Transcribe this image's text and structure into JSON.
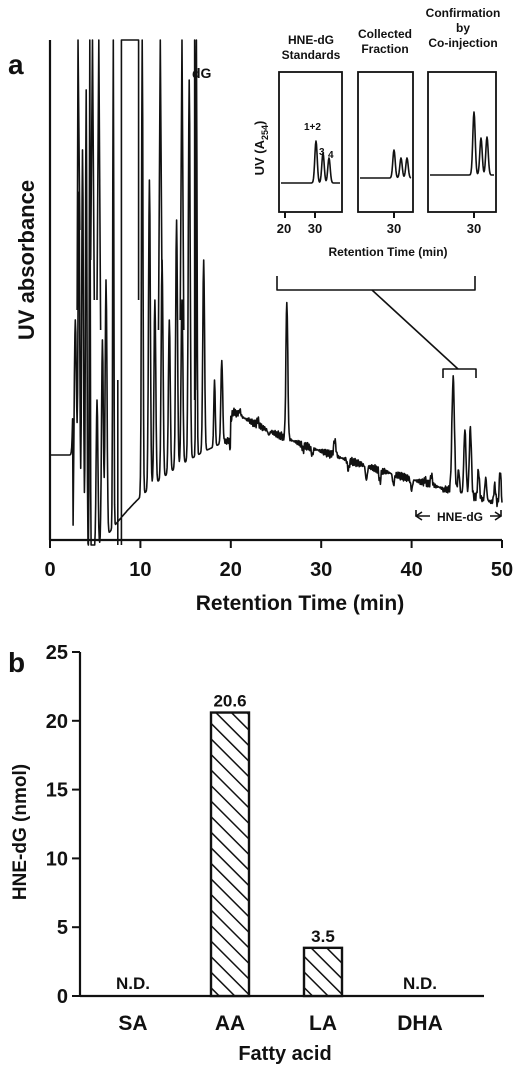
{
  "panel_a": {
    "letter": "a",
    "ylabel": "UV absorbance",
    "xlabel": "Retention Time (min)",
    "x_ticks": [
      "0",
      "10",
      "20",
      "30",
      "40",
      "50"
    ],
    "peak_label": "dG",
    "bracket_label": "HNE-dG",
    "insets": {
      "standards_title_1": "HNE-dG",
      "standards_title_2": "Standards",
      "collected_title_1": "Collected",
      "collected_title_2": "Fraction",
      "confirm_title_1": "Confirmation",
      "confirm_title_2": "by",
      "confirm_title_3": "Co-injection",
      "ylabel_1": "UV (A",
      "ylabel_sub": "254",
      "ylabel_2": ")",
      "peak_label_12": "1+2",
      "peak_label_3": "3",
      "peak_label_4": "4",
      "x_ticks": [
        "20",
        "30",
        "30",
        "30"
      ],
      "xlabel": "Retention Time (min)"
    }
  },
  "panel_b": {
    "letter": "b",
    "ylabel": "HNE-dG (nmol)",
    "xlabel": "Fatty acid",
    "nd_label": "N.D."
  },
  "chart_data": [
    {
      "type": "line",
      "xlabel": "Retention Time (min)",
      "ylabel": "UV absorbance",
      "xlim": [
        0,
        50
      ],
      "description_of_features": "",
      "peaks_x": [
        3,
        4.5,
        7,
        8.5,
        9,
        10,
        11,
        12,
        14,
        15,
        16,
        17,
        18,
        19,
        20,
        21,
        22,
        23,
        24,
        26,
        28,
        29,
        30,
        31,
        32,
        34,
        36,
        38,
        40,
        42,
        44.5,
        45.5,
        46,
        47,
        48,
        49,
        50
      ]
    },
    {
      "type": "bar",
      "xlabel": "Fatty acid",
      "ylabel": "HNE-dG (nmol)",
      "categories": [
        "SA",
        "AA",
        "LA",
        "DHA"
      ],
      "values": [
        null,
        20.6,
        3.5,
        null
      ],
      "value_labels": [
        "N.D.",
        "20.6",
        "3.5",
        "N.D."
      ],
      "ylim": [
        0,
        25
      ],
      "yticks": [
        "0",
        "5",
        "10",
        "15",
        "20",
        "25"
      ]
    }
  ]
}
